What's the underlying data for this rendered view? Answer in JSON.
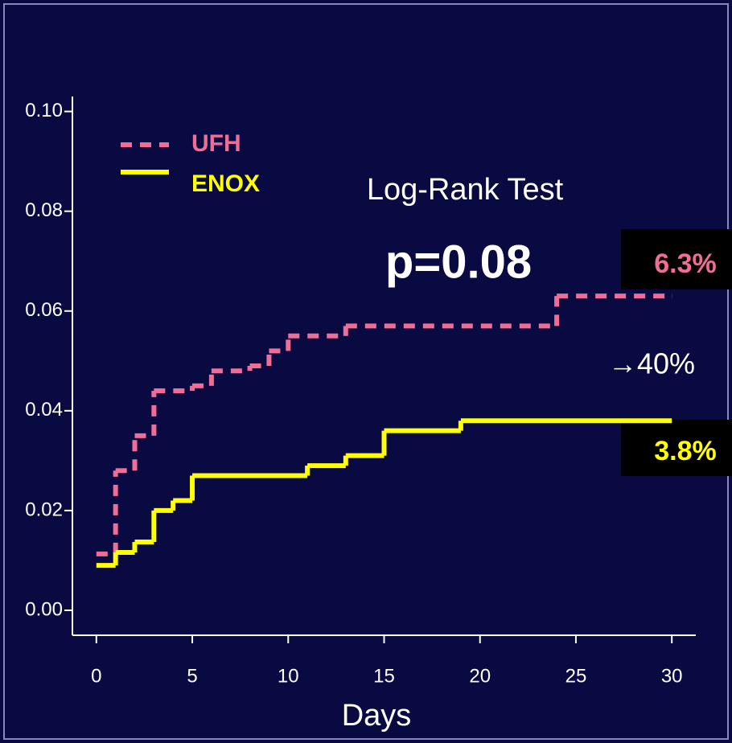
{
  "chart_data": {
    "type": "step",
    "xlabel": "Days",
    "xlim": [
      -1.25,
      31.25
    ],
    "xticks": [
      0,
      5,
      10,
      15,
      20,
      25,
      30
    ],
    "ylim": [
      -0.005,
      0.103
    ],
    "yticks": [
      {
        "value": 0,
        "label": "0.00"
      },
      {
        "value": 0.02,
        "label": "0.02"
      },
      {
        "value": 0.04,
        "label": "0.04"
      },
      {
        "value": 0.06,
        "label": "0.06"
      },
      {
        "value": 0.08,
        "label": "0.08"
      },
      {
        "value": 0.1,
        "label": "0.10"
      }
    ],
    "series": [
      {
        "name": "UFH",
        "color": "#f06e96",
        "dash": true,
        "x": [
          0,
          1,
          2,
          3,
          5,
          6,
          8,
          9,
          10,
          13,
          24,
          30
        ],
        "values": [
          0.0113,
          0.028,
          0.035,
          0.044,
          0.045,
          0.048,
          0.049,
          0.052,
          0.055,
          0.057,
          0.063,
          0.063
        ]
      },
      {
        "name": "ENOX",
        "color": "#ffff00",
        "dash": false,
        "x": [
          0,
          1,
          2,
          3,
          4,
          5,
          11,
          13,
          15,
          19,
          30
        ],
        "values": [
          0.009,
          0.0116,
          0.0137,
          0.02,
          0.022,
          0.027,
          0.029,
          0.031,
          0.036,
          0.038,
          0.038
        ]
      }
    ],
    "annotations": [
      "Log-Rank Test",
      "p=0.08",
      "6.3%",
      "3.8%",
      "→40%"
    ]
  }
}
